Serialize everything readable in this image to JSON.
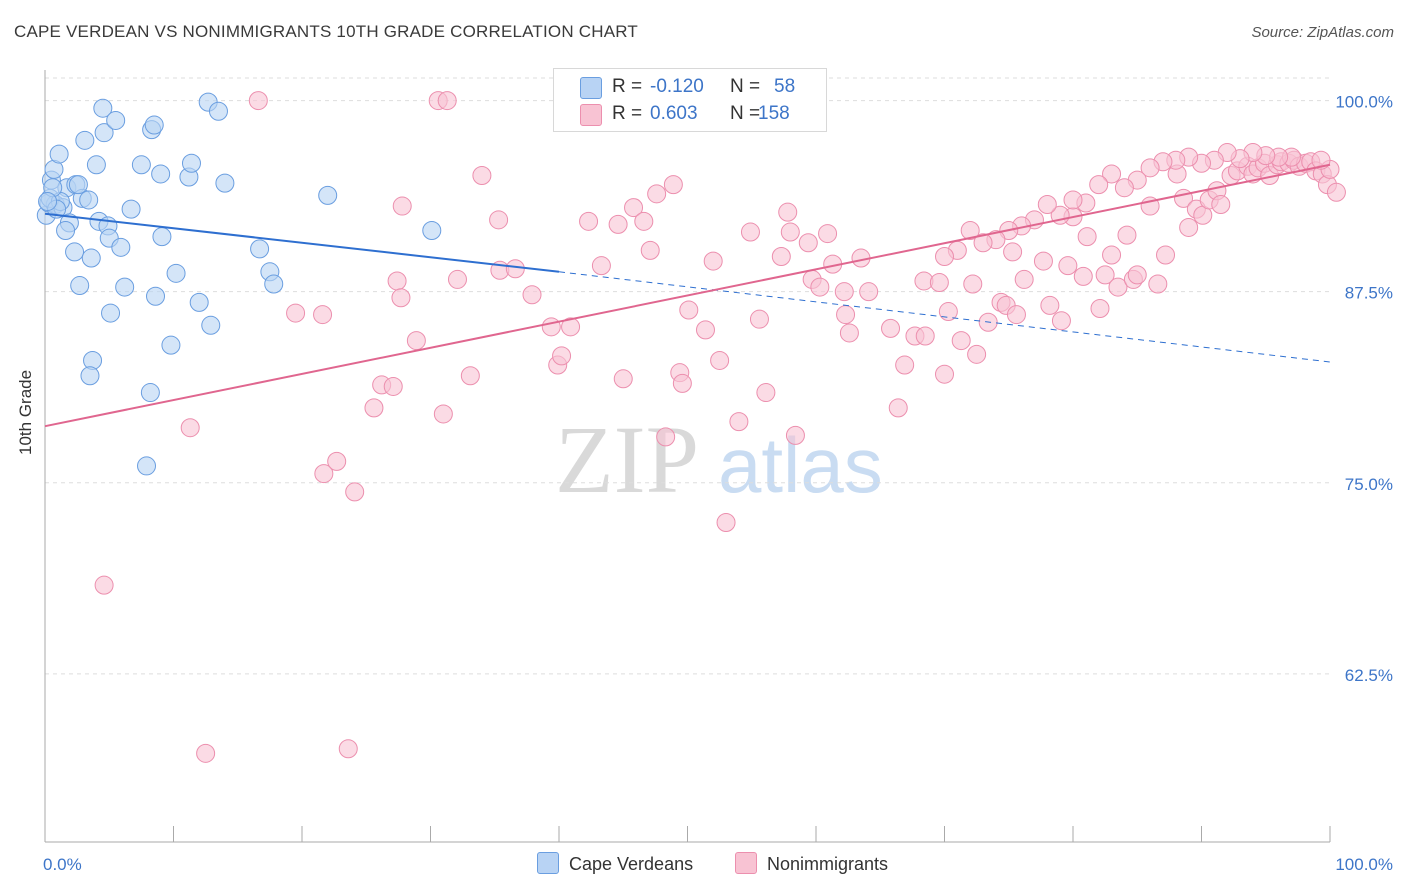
{
  "header": {
    "title": "CAPE VERDEAN VS NONIMMIGRANTS 10TH GRADE CORRELATION CHART",
    "source": "Source: ZipAtlas.com"
  },
  "legend": {
    "series": [
      {
        "r_label": "R =",
        "r_value": "-0.120",
        "n_label": "N =",
        "n_value": "58"
      },
      {
        "r_label": "R =",
        "r_value": "0.603",
        "n_label": "N =",
        "n_value": "158"
      }
    ]
  },
  "bottom_legend": {
    "cape": "Cape Verdeans",
    "nonimm": "Nonimmigrants"
  },
  "watermark": {
    "zip": "ZIP",
    "atlas": "atlas"
  },
  "colors": {
    "blue_fill": "#b8d3f4",
    "blue_stroke": "#6a9ee0",
    "blue_line": "#2e6fd0",
    "pink_fill": "#f8c3d3",
    "pink_stroke": "#ec8fae",
    "pink_line": "#e0668f",
    "tick_text": "#3d75c8",
    "grid": "#dddddd"
  },
  "chart_data": {
    "type": "scatter",
    "title": "CAPE VERDEAN VS NONIMMIGRANTS 10TH GRADE CORRELATION CHART",
    "xlabel": "",
    "ylabel": "10th Grade",
    "xlim": [
      0,
      100
    ],
    "ylim": [
      51.5,
      102
    ],
    "x_tick_labels": [
      "0.0%",
      "100.0%"
    ],
    "y_ticks": [
      62.5,
      75.0,
      87.5,
      100.0
    ],
    "y_tick_labels": [
      "62.5%",
      "75.0%",
      "87.5%",
      "100.0%"
    ],
    "grid": "horizontal dashed",
    "legend_position": "top-center",
    "series": [
      {
        "name": "Cape Verdeans",
        "color": "#b8d3f4",
        "r": -0.12,
        "n": 58,
        "trend": {
          "x0": 0,
          "y0": 92.6,
          "x1": 40,
          "y1": 88.8,
          "dashed_to_x": 100,
          "dashed_to_y": 82.9
        },
        "points": [
          [
            0.1,
            92.5
          ],
          [
            0.3,
            93.3
          ],
          [
            0.5,
            94.8
          ],
          [
            0.7,
            95.5
          ],
          [
            1.1,
            96.5
          ],
          [
            0.8,
            93.2
          ],
          [
            1.4,
            93.0
          ],
          [
            1.7,
            94.3
          ],
          [
            1.9,
            92.0
          ],
          [
            1.6,
            91.5
          ],
          [
            2.4,
            94.5
          ],
          [
            2.9,
            93.6
          ],
          [
            2.6,
            94.5
          ],
          [
            3.1,
            97.4
          ],
          [
            4.0,
            95.8
          ],
          [
            4.5,
            99.5
          ],
          [
            4.6,
            97.9
          ],
          [
            5.5,
            98.7
          ],
          [
            3.4,
            93.5
          ],
          [
            4.2,
            92.1
          ],
          [
            4.9,
            91.8
          ],
          [
            5.0,
            91.0
          ],
          [
            5.9,
            90.4
          ],
          [
            2.3,
            90.1
          ],
          [
            3.6,
            89.7
          ],
          [
            6.7,
            92.9
          ],
          [
            7.5,
            95.8
          ],
          [
            8.3,
            98.1
          ],
          [
            8.5,
            98.4
          ],
          [
            9.0,
            95.2
          ],
          [
            9.1,
            91.1
          ],
          [
            10.2,
            88.7
          ],
          [
            11.2,
            95.0
          ],
          [
            11.4,
            95.9
          ],
          [
            12.7,
            99.9
          ],
          [
            13.5,
            99.3
          ],
          [
            14.0,
            94.6
          ],
          [
            16.7,
            90.3
          ],
          [
            17.5,
            88.8
          ],
          [
            17.8,
            88.0
          ],
          [
            22.0,
            93.8
          ],
          [
            30.1,
            91.5
          ],
          [
            2.7,
            87.9
          ],
          [
            6.2,
            87.8
          ],
          [
            8.6,
            87.2
          ],
          [
            12.0,
            86.8
          ],
          [
            5.1,
            86.1
          ],
          [
            12.9,
            85.3
          ],
          [
            3.7,
            83.0
          ],
          [
            9.8,
            84.0
          ],
          [
            3.5,
            82.0
          ],
          [
            8.2,
            80.9
          ],
          [
            7.9,
            76.1
          ],
          [
            0.4,
            93.6
          ],
          [
            1.2,
            93.4
          ],
          [
            0.6,
            94.3
          ],
          [
            0.9,
            92.9
          ],
          [
            0.2,
            93.4
          ]
        ]
      },
      {
        "name": "Nonimmigrants",
        "color": "#f8c3d3",
        "r": 0.603,
        "n": 158,
        "trend": {
          "x0": 0,
          "y0": 78.7,
          "x1": 100,
          "y1": 95.8
        },
        "points": [
          [
            4.6,
            68.3
          ],
          [
            11.3,
            78.6
          ],
          [
            12.5,
            57.3
          ],
          [
            16.6,
            100.0
          ],
          [
            19.5,
            86.1
          ],
          [
            21.6,
            86.0
          ],
          [
            21.7,
            75.6
          ],
          [
            22.7,
            76.4
          ],
          [
            23.6,
            57.6
          ],
          [
            24.1,
            74.4
          ],
          [
            25.6,
            79.9
          ],
          [
            26.2,
            81.4
          ],
          [
            27.1,
            81.3
          ],
          [
            27.4,
            88.2
          ],
          [
            27.7,
            87.1
          ],
          [
            27.8,
            93.1
          ],
          [
            28.9,
            84.3
          ],
          [
            30.6,
            100.0
          ],
          [
            31.0,
            79.5
          ],
          [
            31.3,
            100.0
          ],
          [
            32.1,
            88.3
          ],
          [
            33.1,
            82.0
          ],
          [
            34.0,
            95.1
          ],
          [
            35.3,
            92.2
          ],
          [
            35.4,
            88.9
          ],
          [
            36.6,
            89.0
          ],
          [
            37.9,
            87.3
          ],
          [
            39.4,
            85.2
          ],
          [
            39.9,
            82.7
          ],
          [
            40.2,
            83.3
          ],
          [
            40.9,
            85.2
          ],
          [
            42.3,
            92.1
          ],
          [
            43.3,
            89.2
          ],
          [
            44.3,
            100.0
          ],
          [
            44.6,
            91.9
          ],
          [
            45.0,
            81.8
          ],
          [
            45.8,
            93.0
          ],
          [
            46.6,
            92.1
          ],
          [
            47.1,
            90.2
          ],
          [
            47.6,
            93.9
          ],
          [
            48.3,
            78.0
          ],
          [
            48.9,
            94.5
          ],
          [
            49.4,
            82.2
          ],
          [
            49.6,
            81.5
          ],
          [
            50.1,
            86.3
          ],
          [
            51.4,
            85.0
          ],
          [
            52.0,
            89.5
          ],
          [
            52.5,
            83.0
          ],
          [
            53.0,
            72.4
          ],
          [
            54.0,
            79.0
          ],
          [
            54.9,
            91.4
          ],
          [
            55.6,
            85.7
          ],
          [
            56.1,
            80.9
          ],
          [
            57.3,
            89.8
          ],
          [
            57.8,
            92.7
          ],
          [
            58.0,
            91.4
          ],
          [
            58.4,
            78.1
          ],
          [
            59.4,
            90.7
          ],
          [
            59.7,
            88.3
          ],
          [
            60.3,
            87.8
          ],
          [
            60.9,
            91.3
          ],
          [
            61.3,
            89.3
          ],
          [
            62.2,
            87.5
          ],
          [
            62.3,
            86.0
          ],
          [
            62.6,
            84.8
          ],
          [
            63.5,
            89.7
          ],
          [
            64.1,
            87.5
          ],
          [
            65.8,
            85.1
          ],
          [
            66.4,
            79.9
          ],
          [
            66.9,
            82.7
          ],
          [
            67.7,
            84.6
          ],
          [
            68.4,
            88.2
          ],
          [
            68.5,
            84.6
          ],
          [
            69.6,
            88.1
          ],
          [
            70.0,
            82.1
          ],
          [
            70.3,
            86.2
          ],
          [
            71.3,
            84.3
          ],
          [
            72.5,
            83.4
          ],
          [
            72.2,
            88.0
          ],
          [
            73.4,
            85.5
          ],
          [
            74.4,
            86.8
          ],
          [
            74.8,
            86.6
          ],
          [
            75.3,
            90.1
          ],
          [
            75.6,
            86.0
          ],
          [
            76.2,
            88.3
          ],
          [
            77.7,
            89.5
          ],
          [
            78.2,
            86.6
          ],
          [
            79.1,
            85.6
          ],
          [
            79.6,
            89.2
          ],
          [
            80.0,
            92.4
          ],
          [
            80.8,
            88.5
          ],
          [
            81.1,
            91.1
          ],
          [
            82.1,
            86.4
          ],
          [
            82.5,
            88.6
          ],
          [
            83.0,
            89.9
          ],
          [
            83.5,
            87.8
          ],
          [
            84.2,
            91.2
          ],
          [
            84.7,
            88.3
          ],
          [
            85.0,
            88.6
          ],
          [
            86.0,
            93.1
          ],
          [
            86.6,
            88.0
          ],
          [
            87.2,
            89.9
          ],
          [
            88.1,
            95.2
          ],
          [
            88.6,
            93.6
          ],
          [
            89.0,
            91.7
          ],
          [
            89.6,
            92.9
          ],
          [
            90.1,
            92.5
          ],
          [
            90.6,
            93.5
          ],
          [
            91.2,
            94.1
          ],
          [
            91.5,
            93.2
          ],
          [
            92.3,
            95.1
          ],
          [
            92.8,
            95.4
          ],
          [
            93.6,
            95.7
          ],
          [
            94.0,
            95.2
          ],
          [
            94.4,
            95.6
          ],
          [
            94.9,
            95.9
          ],
          [
            95.3,
            95.1
          ],
          [
            95.9,
            95.8
          ],
          [
            96.2,
            96.0
          ],
          [
            96.8,
            95.9
          ],
          [
            97.2,
            96.1
          ],
          [
            97.6,
            95.7
          ],
          [
            98.1,
            95.9
          ],
          [
            98.5,
            96.0
          ],
          [
            98.9,
            95.4
          ],
          [
            99.4,
            95.2
          ],
          [
            99.8,
            94.5
          ],
          [
            100.0,
            95.5
          ],
          [
            97.0,
            96.3
          ],
          [
            96.0,
            96.3
          ],
          [
            95.0,
            96.4
          ],
          [
            94.0,
            96.6
          ],
          [
            93.0,
            96.2
          ],
          [
            92.0,
            96.6
          ],
          [
            91.0,
            96.1
          ],
          [
            90.0,
            95.9
          ],
          [
            89.0,
            96.3
          ],
          [
            88.0,
            96.1
          ],
          [
            87.0,
            96.0
          ],
          [
            86.0,
            95.6
          ],
          [
            85.0,
            94.8
          ],
          [
            84.0,
            94.3
          ],
          [
            83.0,
            95.2
          ],
          [
            82.0,
            94.5
          ],
          [
            81.0,
            93.3
          ],
          [
            80.0,
            93.5
          ],
          [
            79.0,
            92.5
          ],
          [
            78.0,
            93.2
          ],
          [
            77.0,
            92.2
          ],
          [
            76.0,
            91.8
          ],
          [
            75.0,
            91.5
          ],
          [
            74.0,
            90.9
          ],
          [
            73.0,
            90.7
          ],
          [
            72.0,
            91.5
          ],
          [
            71.0,
            90.2
          ],
          [
            70.0,
            89.8
          ],
          [
            100.5,
            94.0
          ],
          [
            99.3,
            96.1
          ]
        ]
      }
    ]
  }
}
